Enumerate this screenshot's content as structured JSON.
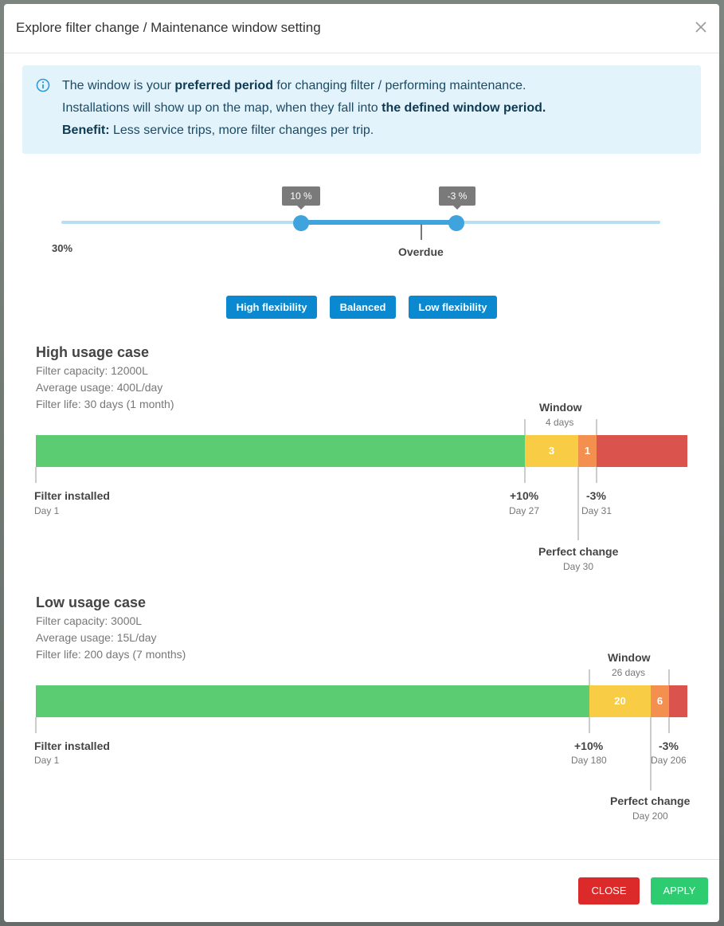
{
  "modal": {
    "title": "Explore filter change / Maintenance window setting"
  },
  "info": {
    "line1_pre": "The window is your ",
    "line1_bold": "preferred period",
    "line1_post": " for changing filter / performing maintenance.",
    "line2_pre": "Installations will show up on the map, when they fall into ",
    "line2_bold": "the defined window period.",
    "line3_bold": "Benefit:",
    "line3_post": " Less service trips, more filter changes per trip."
  },
  "slider": {
    "left_value": "10 %",
    "right_value": "-3 %",
    "min_label": "30%",
    "overdue_label": "Overdue"
  },
  "presets": {
    "high": "High flexibility",
    "balanced": "Balanced",
    "low": "Low flexibility"
  },
  "high_case": {
    "title": "High usage case",
    "capacity": "Filter capacity: 12000L",
    "usage": "Average usage: 400L/day",
    "life": "Filter life: 30 days (1 month)",
    "window_title": "Window",
    "window_days": "4 days",
    "seg_early": "3",
    "seg_late": "1",
    "installed_title": "Filter installed",
    "installed_day": "Day 1",
    "plus_title": "+10%",
    "plus_day": "Day 27",
    "minus_title": "-3%",
    "minus_day": "Day 31",
    "perfect_title": "Perfect change",
    "perfect_day": "Day 30"
  },
  "low_case": {
    "title": "Low usage case",
    "capacity": "Filter capacity: 3000L",
    "usage": "Average usage: 15L/day",
    "life": "Filter life: 200 days (7 months)",
    "window_title": "Window",
    "window_days": "26 days",
    "seg_early": "20",
    "seg_late": "6",
    "installed_title": "Filter installed",
    "installed_day": "Day 1",
    "plus_title": "+10%",
    "plus_day": "Day 180",
    "minus_title": "-3%",
    "minus_day": "Day 206",
    "perfect_title": "Perfect change",
    "perfect_day": "Day 200"
  },
  "footer": {
    "close": "CLOSE",
    "apply": "APPLY"
  },
  "colors": {
    "green": "#5ccc72",
    "yellow": "#f9cc45",
    "orange": "#f3904f",
    "red": "#db534d",
    "primary": "#0a88d0",
    "danger": "#dc2a2a",
    "success": "#2ecc71"
  }
}
